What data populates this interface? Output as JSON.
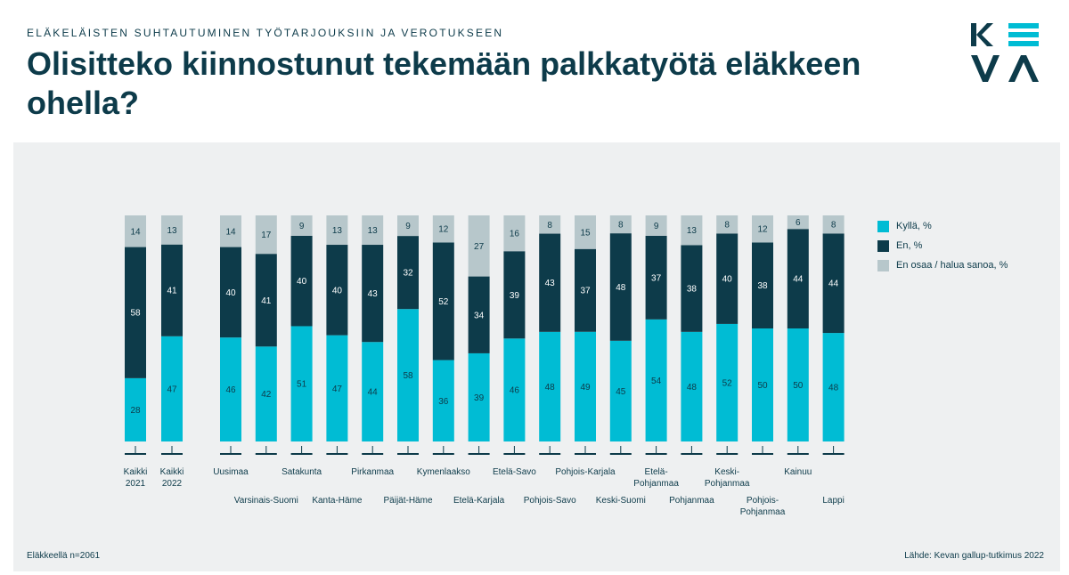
{
  "header": {
    "kicker": "ELÄKELÄISTEN SUHTAUTUMINEN TYÖTARJOUKSIIN JA VEROTUKSEEN",
    "title": "Olisitteko kiinnostunut tekemään palkkatyötä eläkkeen ohella?",
    "logo_text": "KEVA"
  },
  "footer": {
    "note": "Eläkkeellä n=2061",
    "source": "Lähde: Kevan gallup-tutkimus 2022"
  },
  "colors": {
    "yes": "#00bcd4",
    "no": "#0d3b4a",
    "dontknow": "#b7c7cb",
    "text": "#0d3b4a"
  },
  "chart_data": {
    "type": "bar",
    "stacked": true,
    "percent": true,
    "categories": [
      "Kaikki 2021",
      "Kaikki 2022",
      "Uusimaa",
      "Varsinais-Suomi",
      "Satakunta",
      "Kanta-Häme",
      "Pirkanmaa",
      "Päijät-Häme",
      "Kymenlaakso",
      "Etelä-Karjala",
      "Etelä-Savo",
      "Pohjois-Savo",
      "Pohjois-Karjala",
      "Keski-Suomi",
      "Etelä-Pohjanmaa",
      "Pohjanmaa",
      "Keski-Pohjanmaa",
      "Pohjois-Pohjanmaa",
      "Kainuu",
      "Lappi"
    ],
    "series": [
      {
        "name": "Kyllä, %",
        "values": [
          28,
          47,
          46,
          42,
          51,
          47,
          44,
          58,
          36,
          39,
          46,
          48,
          49,
          45,
          54,
          48,
          52,
          50,
          50,
          48
        ]
      },
      {
        "name": "En, %",
        "values": [
          58,
          41,
          40,
          41,
          40,
          40,
          43,
          32,
          52,
          34,
          39,
          43,
          37,
          48,
          37,
          38,
          40,
          38,
          44,
          44
        ]
      },
      {
        "name": "En osaa / halua sanoa, %",
        "values": [
          14,
          13,
          14,
          17,
          9,
          13,
          13,
          9,
          12,
          27,
          16,
          8,
          15,
          8,
          9,
          13,
          8,
          12,
          6,
          8
        ]
      }
    ],
    "legend": "right",
    "grid": false,
    "xlabels": [
      [
        "Kaikki",
        "2021"
      ],
      [
        "Kaikki",
        "2022"
      ],
      [
        "Uusimaa"
      ],
      [
        "Varsinais-Suomi"
      ],
      [
        "Satakunta"
      ],
      [
        "Kanta-Häme"
      ],
      [
        "Pirkanmaa"
      ],
      [
        "Päijät-Häme"
      ],
      [
        "Kymenlaakso"
      ],
      [
        "Etelä-Karjala"
      ],
      [
        "Etelä-Savo"
      ],
      [
        "Pohjois-Savo"
      ],
      [
        "Pohjois-Karjala"
      ],
      [
        "Keski-Suomi"
      ],
      [
        "Etelä-",
        "Pohjanmaa"
      ],
      [
        "Pohjanmaa"
      ],
      [
        "Keski-",
        "Pohjanmaa"
      ],
      [
        "Pohjois-",
        "Pohjanmaa"
      ],
      [
        "Kainuu"
      ],
      [
        "Lappi"
      ]
    ]
  }
}
